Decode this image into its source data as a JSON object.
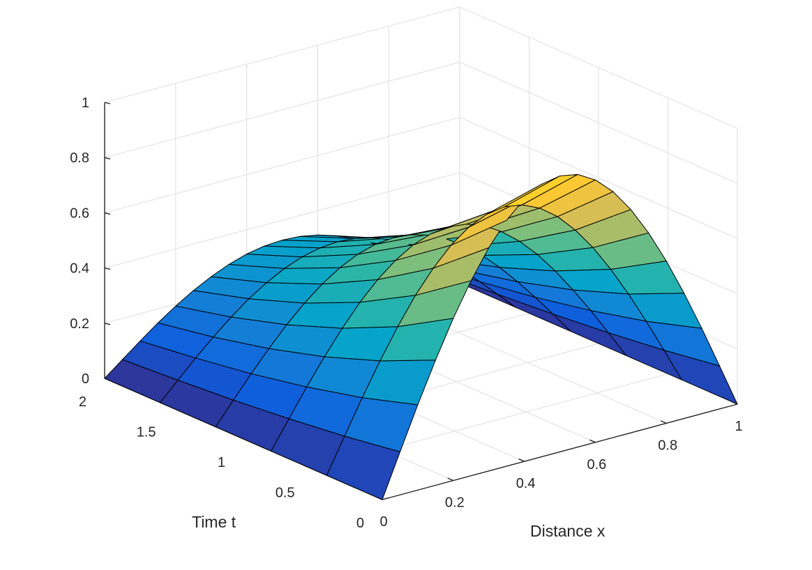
{
  "chart_data": {
    "type": "surface",
    "title": "",
    "xlabel": "Distance x",
    "ylabel": "Time t",
    "zlabel": "",
    "x_ticks": [
      "0",
      "0.2",
      "0.4",
      "0.6",
      "0.8",
      "1"
    ],
    "t_ticks": [
      "0",
      "0.5",
      "1",
      "1.5",
      "2"
    ],
    "z_ticks": [
      "0",
      "0.2",
      "0.4",
      "0.6",
      "0.8",
      "1"
    ],
    "xlim": [
      0,
      1
    ],
    "tlim": [
      0,
      2
    ],
    "zlim": [
      0,
      1
    ],
    "grid": true,
    "colormap": "parula",
    "colormap_stops": [
      "#352a87",
      "#0f5cdd",
      "#1481d6",
      "#06a4ca",
      "#2eb7a4",
      "#87bf77",
      "#d1bb59",
      "#fec832",
      "#f9fb0e"
    ],
    "x": [
      0,
      0.05,
      0.1,
      0.15,
      0.2,
      0.25,
      0.3,
      0.35,
      0.4,
      0.45,
      0.5,
      0.55,
      0.6,
      0.65,
      0.7,
      0.75,
      0.8,
      0.85,
      0.9,
      0.95,
      1
    ],
    "t": [
      0,
      0.4,
      0.8,
      1.2,
      1.6,
      2.0
    ],
    "z": [
      [
        0,
        0.156,
        0.309,
        0.454,
        0.588,
        0.707,
        0.809,
        0.891,
        0.951,
        0.988,
        1.0,
        0.988,
        0.951,
        0.891,
        0.809,
        0.707,
        0.588,
        0.454,
        0.309,
        0.156,
        0
      ],
      [
        0,
        0.125,
        0.247,
        0.363,
        0.47,
        0.566,
        0.647,
        0.713,
        0.761,
        0.79,
        0.8,
        0.79,
        0.761,
        0.713,
        0.647,
        0.566,
        0.47,
        0.363,
        0.247,
        0.125,
        0
      ],
      [
        0,
        0.1,
        0.198,
        0.29,
        0.376,
        0.453,
        0.518,
        0.57,
        0.609,
        0.632,
        0.64,
        0.632,
        0.609,
        0.57,
        0.518,
        0.453,
        0.376,
        0.29,
        0.198,
        0.1,
        0
      ],
      [
        0,
        0.08,
        0.158,
        0.232,
        0.301,
        0.362,
        0.414,
        0.456,
        0.487,
        0.506,
        0.512,
        0.506,
        0.487,
        0.456,
        0.414,
        0.362,
        0.301,
        0.232,
        0.158,
        0.08,
        0
      ],
      [
        0,
        0.064,
        0.127,
        0.186,
        0.241,
        0.29,
        0.331,
        0.365,
        0.39,
        0.405,
        0.41,
        0.405,
        0.39,
        0.365,
        0.331,
        0.29,
        0.241,
        0.186,
        0.127,
        0.064,
        0
      ],
      [
        0,
        0.051,
        0.101,
        0.149,
        0.193,
        0.232,
        0.265,
        0.292,
        0.312,
        0.324,
        0.328,
        0.324,
        0.312,
        0.292,
        0.265,
        0.232,
        0.193,
        0.149,
        0.101,
        0.051,
        0
      ]
    ]
  }
}
